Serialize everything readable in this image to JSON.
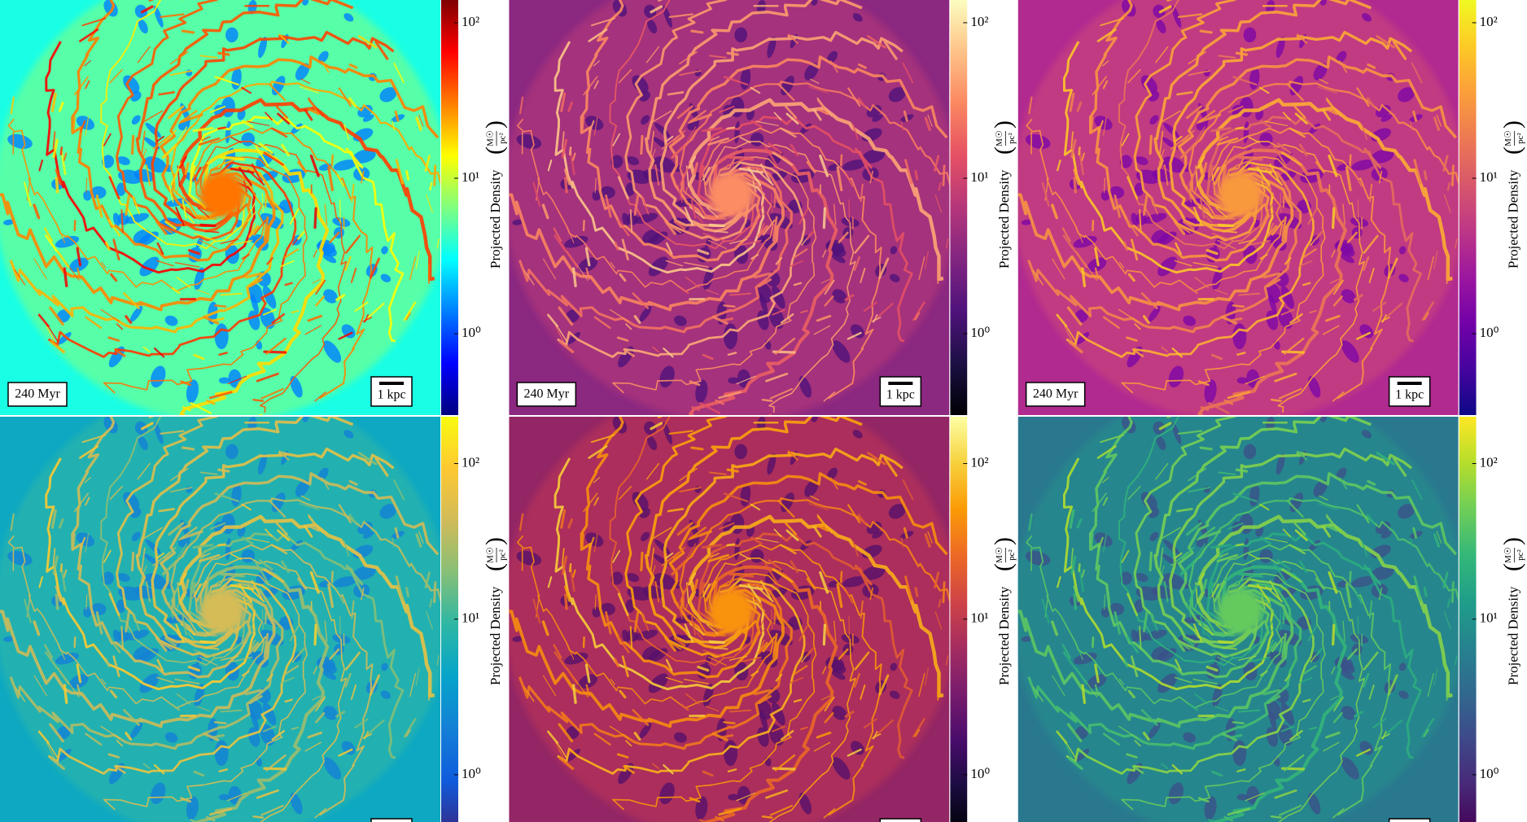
{
  "panels": [
    {
      "time_label": "240 Myr",
      "scale_label": "1 kpc",
      "colorbar": {
        "label": "Projected Density",
        "unit_numerator": "M☉",
        "unit_denominator": "pc²",
        "scale": "log",
        "lim": [
          0.3,
          140
        ],
        "ticks": [
          {
            "value": 100,
            "label": "10²"
          },
          {
            "value": 10,
            "label": "10¹"
          },
          {
            "value": 1,
            "label": "10⁰"
          }
        ],
        "colors": [
          "#00007f",
          "#0000ff",
          "#007fff",
          "#00ffff",
          "#7fff7f",
          "#ffff00",
          "#ff7f00",
          "#ff0000",
          "#7f0000"
        ]
      }
    },
    {
      "time_label": "240 Myr",
      "scale_label": "1 kpc",
      "colorbar": {
        "label": "Projected Density",
        "unit_numerator": "M☉",
        "unit_denominator": "pc²",
        "scale": "log",
        "lim": [
          0.3,
          140
        ],
        "ticks": [
          {
            "value": 100,
            "label": "10²"
          },
          {
            "value": 10,
            "label": "10¹"
          },
          {
            "value": 1,
            "label": "10⁰"
          }
        ],
        "colors": [
          "#000004",
          "#1c1044",
          "#4f127b",
          "#812581",
          "#b5367a",
          "#e55064",
          "#fb8761",
          "#fec287",
          "#fcfdbf"
        ]
      }
    },
    {
      "time_label": "240 Myr",
      "scale_label": "1 kpc",
      "colorbar": {
        "label": "Projected Density",
        "unit_numerator": "M☉",
        "unit_denominator": "pc²",
        "scale": "log",
        "lim": [
          0.3,
          140
        ],
        "ticks": [
          {
            "value": 100,
            "label": "10²"
          },
          {
            "value": 10,
            "label": "10¹"
          },
          {
            "value": 1,
            "label": "10⁰"
          }
        ],
        "colors": [
          "#0d0887",
          "#46039f",
          "#7201a8",
          "#9c179e",
          "#bd3786",
          "#d8576b",
          "#ed7953",
          "#fb9f3a",
          "#fdca26",
          "#f0f921"
        ]
      }
    },
    {
      "colorbar": {
        "label": "Projected Density",
        "unit_numerator": "M☉",
        "unit_denominator": "pc²",
        "scale": "log",
        "lim": [
          0.43,
          200
        ],
        "ticks": [
          {
            "value": 100,
            "label": "10²"
          },
          {
            "value": 10,
            "label": "10¹"
          },
          {
            "value": 1,
            "label": "10⁰"
          }
        ],
        "colors": [
          "#352a87",
          "#0f5cdd",
          "#1481d6",
          "#06a4ca",
          "#2eb7a4",
          "#87bf77",
          "#d1bb59",
          "#fec832",
          "#f9fb0e"
        ]
      }
    },
    {
      "colorbar": {
        "label": "Projected Density",
        "unit_numerator": "M☉",
        "unit_denominator": "pc²",
        "scale": "log",
        "lim": [
          0.43,
          200
        ],
        "ticks": [
          {
            "value": 100,
            "label": "10²"
          },
          {
            "value": 10,
            "label": "10¹"
          },
          {
            "value": 1,
            "label": "10⁰"
          }
        ],
        "colors": [
          "#000004",
          "#1b0c41",
          "#4a0c6b",
          "#781c6d",
          "#a52c60",
          "#cf4446",
          "#ed6925",
          "#fb9b06",
          "#f7d13d",
          "#fcffa4"
        ]
      }
    },
    {
      "colorbar": {
        "label": "Projected Density",
        "unit_numerator": "M☉",
        "unit_denominator": "pc²",
        "scale": "log",
        "lim": [
          0.43,
          200
        ],
        "ticks": [
          {
            "value": 100,
            "label": "10²"
          },
          {
            "value": 10,
            "label": "10¹"
          },
          {
            "value": 1,
            "label": "10⁰"
          }
        ],
        "colors": [
          "#440154",
          "#482878",
          "#3e4989",
          "#31688e",
          "#26828e",
          "#1f9e89",
          "#35b779",
          "#6ece58",
          "#b5de2b",
          "#fde725"
        ]
      }
    }
  ]
}
